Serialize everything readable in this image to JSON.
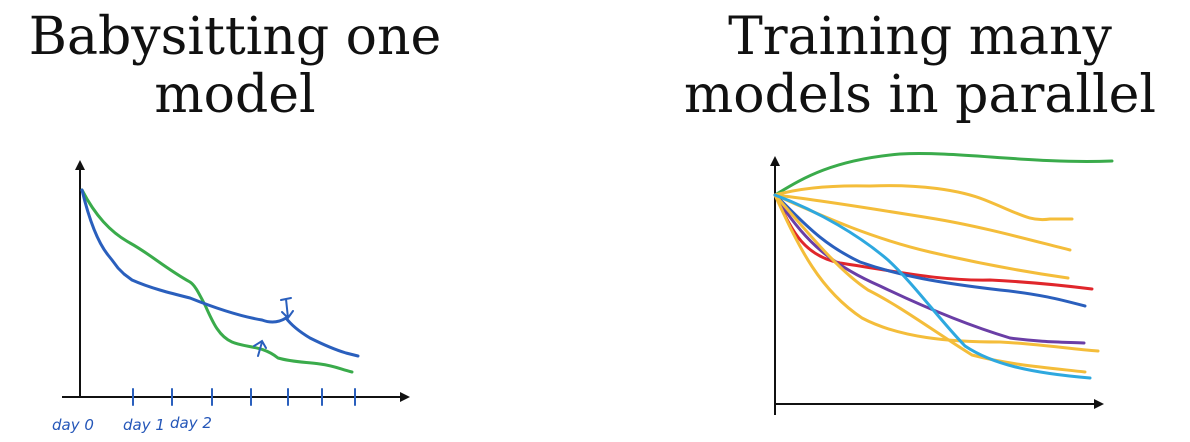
{
  "left_panel": {
    "title_line1": "Babysitting one",
    "title_line2": "model",
    "tick_labels": [
      "day 0",
      "day 1",
      "day 2"
    ],
    "colors": {
      "axis": "#111111",
      "curve_blue": "#2a5fbd",
      "curve_green": "#3aab4b"
    }
  },
  "right_panel": {
    "title_line1": "Training many",
    "title_line2": "models in parallel",
    "colors": {
      "axis": "#111111",
      "green": "#3aab4b",
      "yellow": "#f4bd3a",
      "red": "#e0262b",
      "blue": "#2a5fbd",
      "purple": "#6a3ea6",
      "cyan": "#2ea8df"
    }
  }
}
